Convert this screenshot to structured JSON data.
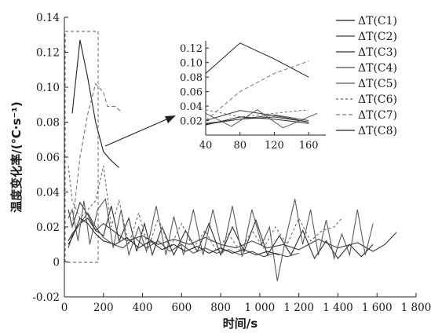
{
  "chart_data": {
    "type": "line",
    "title": "",
    "xlabel": "时间/s",
    "ylabel": "温度变化率/(℃·s⁻¹)",
    "xlim": [
      0,
      1800
    ],
    "ylim": [
      -0.02,
      0.14
    ],
    "x_ticks": [
      "0",
      "200",
      "400",
      "600",
      "800",
      "1 000",
      "1 200",
      "1 400",
      "1 600",
      "1 800"
    ],
    "y_ticks": [
      "-0.02",
      "0",
      "0.02",
      "0.04",
      "0.06",
      "0.08",
      "0.10",
      "0.12",
      "0.14"
    ],
    "legend_position": "right",
    "grid": false,
    "series": [
      {
        "name": "ΔT(C1)",
        "color": "#1f1f1f",
        "dash": "",
        "points": [
          [
            40,
            0.085
          ],
          [
            80,
            0.127
          ],
          [
            120,
            0.105
          ],
          [
            160,
            0.08
          ],
          [
            200,
            0.063
          ],
          [
            240,
            0.058
          ],
          [
            280,
            0.054
          ]
        ]
      },
      {
        "name": "ΔT(C2)",
        "color": "#3a3a3a",
        "dash": "",
        "points": [
          [
            20,
            0.03
          ],
          [
            40,
            0.02
          ],
          [
            80,
            0.034
          ],
          [
            120,
            0.027
          ],
          [
            160,
            0.018
          ],
          [
            200,
            0.022
          ],
          [
            260,
            0.017
          ],
          [
            320,
            0.012
          ],
          [
            400,
            0.015
          ],
          [
            480,
            0.01
          ],
          [
            560,
            0.013
          ],
          [
            640,
            0.01
          ],
          [
            720,
            0.014
          ],
          [
            800,
            0.01
          ],
          [
            880,
            0.008
          ],
          [
            960,
            0.012
          ],
          [
            1040,
            0.008
          ],
          [
            1120,
            0.01
          ],
          [
            1200,
            0.007
          ],
          [
            1300,
            0.013
          ],
          [
            1400,
            0.008
          ],
          [
            1500,
            0.011
          ],
          [
            1580,
            0.006
          ],
          [
            1640,
            0.01
          ],
          [
            1700,
            0.017
          ]
        ]
      },
      {
        "name": "ΔT(C3)",
        "color": "#2e2e2e",
        "dash": "",
        "points": [
          [
            20,
            0.012
          ],
          [
            40,
            0.016
          ],
          [
            80,
            0.022
          ],
          [
            120,
            0.025
          ],
          [
            160,
            0.018
          ],
          [
            200,
            0.015
          ],
          [
            240,
            0.032
          ],
          [
            280,
            0.012
          ],
          [
            330,
            0.025
          ],
          [
            370,
            0.006
          ],
          [
            410,
            0.022
          ],
          [
            450,
            0.004
          ],
          [
            500,
            0.02
          ],
          [
            560,
            0.004
          ],
          [
            620,
            0.018
          ],
          [
            680,
            0.006
          ],
          [
            740,
            0.022
          ],
          [
            800,
            0.004
          ],
          [
            860,
            0.02
          ],
          [
            920,
            0.006
          ],
          [
            980,
            0.024
          ],
          [
            1040,
            0.004
          ],
          [
            1100,
            0.015
          ],
          [
            1160,
            0.004
          ],
          [
            1220,
            0.018
          ],
          [
            1280,
            0.002
          ],
          [
            1340,
            0.012
          ],
          [
            1400,
            0.002
          ],
          [
            1460,
            0.01
          ],
          [
            1520,
            0.003
          ],
          [
            1580,
            0.01
          ]
        ]
      },
      {
        "name": "ΔT(C4)",
        "color": "#4a4a4a",
        "dash": "",
        "points": [
          [
            20,
            0.008
          ],
          [
            40,
            0.015
          ],
          [
            80,
            0.022
          ],
          [
            120,
            0.028
          ],
          [
            160,
            0.02
          ],
          [
            200,
            0.014
          ],
          [
            250,
            0.01
          ],
          [
            300,
            0.008
          ],
          [
            360,
            0.014
          ],
          [
            420,
            0.008
          ],
          [
            480,
            0.012
          ],
          [
            540,
            0.006
          ],
          [
            600,
            0.01
          ],
          [
            660,
            0.005
          ],
          [
            720,
            0.008
          ],
          [
            780,
            0.005
          ],
          [
            840,
            0.007
          ],
          [
            900,
            0.004
          ],
          [
            960,
            0.006
          ],
          [
            1020,
            0.003
          ],
          [
            1080,
            0.005
          ],
          [
            1140,
            0.003
          ],
          [
            1200,
            0.005
          ]
        ]
      },
      {
        "name": "ΔT(C5)",
        "color": "#5a5a5a",
        "dash": "",
        "points": [
          [
            20,
            0.025
          ],
          [
            40,
            0.03
          ],
          [
            70,
            0.012
          ],
          [
            100,
            0.035
          ],
          [
            130,
            0.01
          ],
          [
            170,
            0.03
          ],
          [
            210,
            0.036
          ],
          [
            250,
            0.008
          ],
          [
            290,
            0.03
          ],
          [
            330,
            0.004
          ],
          [
            380,
            0.02
          ],
          [
            420,
            0.006
          ],
          [
            470,
            0.032
          ],
          [
            520,
            0.004
          ],
          [
            560,
            0.026
          ],
          [
            610,
            0.004
          ],
          [
            660,
            0.03
          ],
          [
            710,
            0.004
          ],
          [
            760,
            0.03
          ],
          [
            810,
            0.005
          ],
          [
            860,
            0.032
          ],
          [
            910,
            0.003
          ],
          [
            960,
            0.03
          ],
          [
            1010,
            0.01
          ],
          [
            1050,
            0.02
          ],
          [
            1090,
            -0.011
          ],
          [
            1130,
            0.012
          ],
          [
            1180,
            0.036
          ],
          [
            1220,
            0.01
          ],
          [
            1260,
            0.03
          ],
          [
            1300,
            0.004
          ],
          [
            1340,
            0.024
          ],
          [
            1380,
            0.002
          ],
          [
            1420,
            0.016
          ],
          [
            1460,
            0.004
          ],
          [
            1500,
            0.03
          ],
          [
            1540,
            0.004
          ],
          [
            1580,
            0.022
          ]
        ]
      },
      {
        "name": "ΔT(C6)",
        "color": "#666666",
        "dash": "3,3",
        "points": [
          [
            20,
            0.055
          ],
          [
            40,
            0.035
          ],
          [
            80,
            0.025
          ],
          [
            120,
            0.03
          ],
          [
            160,
            0.035
          ],
          [
            200,
            0.055
          ],
          [
            240,
            0.02
          ],
          [
            280,
            0.035
          ],
          [
            330,
            0.01
          ],
          [
            380,
            0.028
          ],
          [
            430,
            0.008
          ],
          [
            480,
            0.025
          ],
          [
            540,
            0.008
          ],
          [
            600,
            0.022
          ],
          [
            660,
            0.008
          ],
          [
            720,
            0.018
          ],
          [
            780,
            0.006
          ],
          [
            840,
            0.016
          ],
          [
            900,
            0.006
          ],
          [
            960,
            0.018
          ],
          [
            1020,
            0.008
          ],
          [
            1080,
            0.02
          ],
          [
            1140,
            0.01
          ],
          [
            1200,
            0.025
          ],
          [
            1260,
            0.012
          ],
          [
            1320,
            0.018
          ],
          [
            1380,
            0.02
          ],
          [
            1420,
            0.025
          ]
        ]
      },
      {
        "name": "ΔT(C7)",
        "color": "#777777",
        "dash": "5,3",
        "points": [
          [
            40,
            0.02
          ],
          [
            80,
            0.06
          ],
          [
            120,
            0.085
          ],
          [
            160,
            0.102
          ],
          [
            200,
            0.097
          ],
          [
            220,
            0.089
          ],
          [
            260,
            0.089
          ],
          [
            290,
            0.086
          ]
        ]
      },
      {
        "name": "ΔT(C8)",
        "color": "#262626",
        "dash": "",
        "points": [
          [
            20,
            0.01
          ],
          [
            40,
            0.014
          ],
          [
            80,
            0.025
          ],
          [
            120,
            0.022
          ],
          [
            160,
            0.016
          ],
          [
            200,
            0.012
          ],
          [
            260,
            0.01
          ],
          [
            320,
            0.014
          ],
          [
            380,
            0.008
          ],
          [
            440,
            0.012
          ],
          [
            500,
            0.007
          ],
          [
            560,
            0.01
          ],
          [
            620,
            0.006
          ],
          [
            680,
            0.009
          ],
          [
            740,
            0.005
          ],
          [
            800,
            0.008
          ],
          [
            860,
            0.005
          ],
          [
            920,
            0.007
          ],
          [
            980,
            0.004
          ],
          [
            1040,
            0.006
          ],
          [
            1100,
            0.004
          ]
        ]
      }
    ],
    "inset": {
      "xlim": [
        40,
        180
      ],
      "ylim": [
        0,
        0.13
      ],
      "x_ticks": [
        "40",
        "80",
        "120",
        "160"
      ],
      "y_ticks": [
        "0.02",
        "0.04",
        "0.06",
        "0.08",
        "0.10",
        "0.12"
      ],
      "x_range_shown": [
        40,
        180
      ]
    }
  }
}
